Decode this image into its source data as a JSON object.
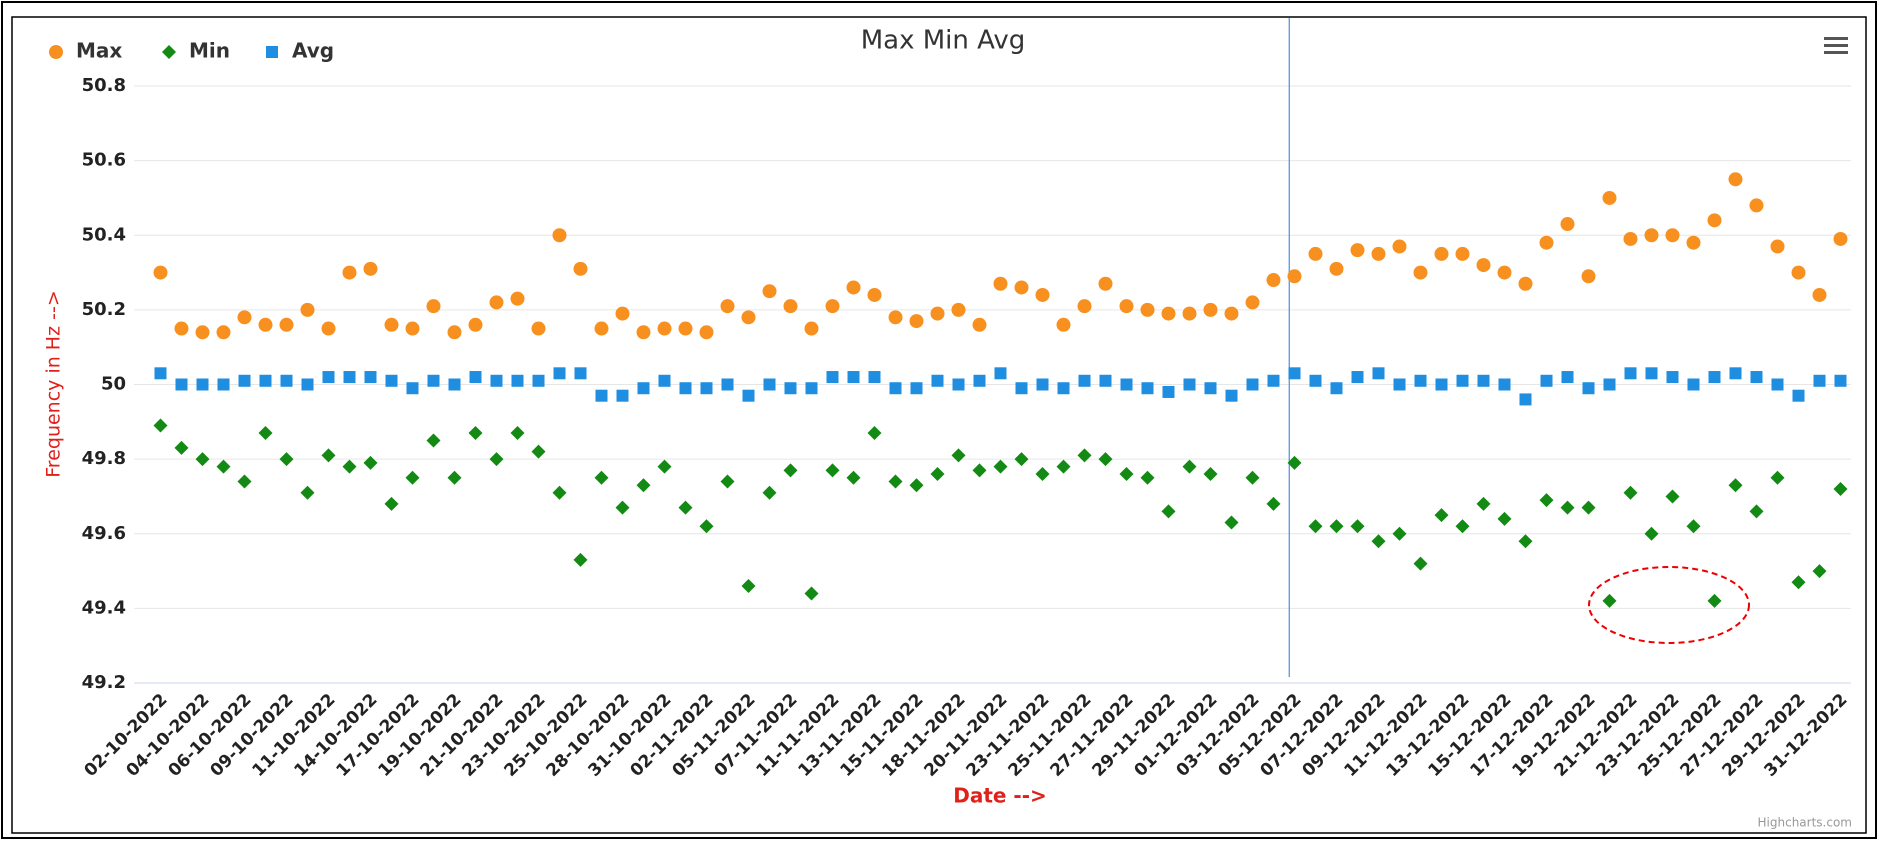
{
  "chart_data": {
    "type": "scatter",
    "title": "Max Min Avg",
    "x_label": "Date -->",
    "y_label": "Frequency in Hz -->",
    "credit": "Highcharts.com",
    "categories": [
      "02-10-2022",
      null,
      "04-10-2022",
      null,
      "06-10-2022",
      null,
      "09-10-2022",
      null,
      "11-10-2022",
      null,
      "14-10-2022",
      null,
      "17-10-2022",
      null,
      "19-10-2022",
      null,
      "21-10-2022",
      null,
      "23-10-2022",
      null,
      "25-10-2022",
      null,
      "28-10-2022",
      null,
      "31-10-2022",
      null,
      "02-11-2022",
      null,
      "05-11-2022",
      null,
      "07-11-2022",
      null,
      "11-11-2022",
      null,
      "13-11-2022",
      null,
      "15-11-2022",
      null,
      "18-11-2022",
      null,
      "20-11-2022",
      null,
      "23-11-2022",
      null,
      "25-11-2022",
      null,
      "27-11-2022",
      null,
      "29-11-2022",
      null,
      "01-12-2022",
      null,
      "03-12-2022",
      null,
      "05-12-2022",
      null,
      "07-12-2022",
      null,
      "09-12-2022",
      null,
      "11-12-2022",
      null,
      "13-12-2022",
      null,
      "15-12-2022",
      null,
      "17-12-2022",
      null,
      "19-12-2022",
      null,
      "21-12-2022",
      null,
      "23-12-2022",
      null,
      "25-12-2022",
      null,
      "27-12-2022",
      null,
      "29-12-2022",
      null,
      "31-12-2022"
    ],
    "series": [
      {
        "name": "Max",
        "color": "#f7901e",
        "marker": "circle",
        "values": [
          50.3,
          50.15,
          50.14,
          50.14,
          50.18,
          50.16,
          50.16,
          50.2,
          50.15,
          50.3,
          50.31,
          50.16,
          50.15,
          50.21,
          50.14,
          50.16,
          50.22,
          50.23,
          50.15,
          50.4,
          50.31,
          50.15,
          50.19,
          50.14,
          50.15,
          50.15,
          50.14,
          50.21,
          50.18,
          50.25,
          50.21,
          50.15,
          50.21,
          50.26,
          50.24,
          50.18,
          50.17,
          50.19,
          50.2,
          50.16,
          50.27,
          50.26,
          50.24,
          50.16,
          50.21,
          50.27,
          50.21,
          50.2,
          50.19,
          50.19,
          50.2,
          50.19,
          50.22,
          50.28,
          50.29,
          50.35,
          50.31,
          50.36,
          50.35,
          50.37,
          50.3,
          50.35,
          50.35,
          50.32,
          50.3,
          50.27,
          50.38,
          50.43,
          50.29,
          50.5,
          50.39,
          50.4,
          50.4,
          50.38,
          50.44,
          50.55,
          50.48,
          50.37,
          50.3,
          50.24,
          50.39
        ]
      },
      {
        "name": "Min",
        "color": "#138a13",
        "marker": "diamond",
        "values": [
          49.89,
          49.83,
          49.8,
          49.78,
          49.74,
          49.87,
          49.8,
          49.71,
          49.81,
          49.78,
          49.79,
          49.68,
          49.75,
          49.85,
          49.75,
          49.87,
          49.8,
          49.87,
          49.82,
          49.71,
          49.53,
          49.75,
          49.67,
          49.73,
          49.78,
          49.67,
          49.62,
          49.74,
          49.46,
          49.71,
          49.77,
          49.44,
          49.77,
          49.75,
          49.87,
          49.74,
          49.73,
          49.76,
          49.81,
          49.77,
          49.78,
          49.8,
          49.76,
          49.78,
          49.81,
          49.8,
          49.76,
          49.75,
          49.66,
          49.78,
          49.76,
          49.63,
          49.75,
          49.68,
          49.79,
          49.62,
          49.62,
          49.62,
          49.58,
          49.6,
          49.52,
          49.65,
          49.62,
          49.68,
          49.64,
          49.58,
          49.69,
          49.67,
          49.67,
          49.42,
          49.71,
          49.6,
          49.7,
          49.62,
          49.42,
          49.73,
          49.66,
          49.75,
          49.47,
          49.5,
          49.72
        ]
      },
      {
        "name": "Avg",
        "color": "#1f8ee0",
        "marker": "square",
        "values": [
          50.03,
          50.0,
          50.0,
          50.0,
          50.01,
          50.01,
          50.01,
          50.0,
          50.02,
          50.02,
          50.02,
          50.01,
          49.99,
          50.01,
          50.0,
          50.02,
          50.01,
          50.01,
          50.01,
          50.03,
          50.03,
          49.97,
          49.97,
          49.99,
          50.01,
          49.99,
          49.99,
          50.0,
          49.97,
          50.0,
          49.99,
          49.99,
          50.02,
          50.02,
          50.02,
          49.99,
          49.99,
          50.01,
          50.0,
          50.01,
          50.03,
          49.99,
          50.0,
          49.99,
          50.01,
          50.01,
          50.0,
          49.99,
          49.98,
          50.0,
          49.99,
          49.97,
          50.0,
          50.01,
          50.03,
          50.01,
          49.99,
          50.02,
          50.03,
          50.0,
          50.01,
          50.0,
          50.01,
          50.01,
          50.0,
          49.96,
          50.01,
          50.02,
          49.99,
          50.0,
          50.03,
          50.03,
          50.02,
          50.0,
          50.02,
          50.03,
          50.02,
          50.0,
          49.97,
          50.01,
          50.01
        ]
      }
    ],
    "ylim": [
      49.2,
      50.8
    ],
    "yticks": [
      49.2,
      49.4,
      49.6,
      49.8,
      50,
      50.2,
      50.4,
      50.6,
      50.8
    ],
    "grid": true
  }
}
